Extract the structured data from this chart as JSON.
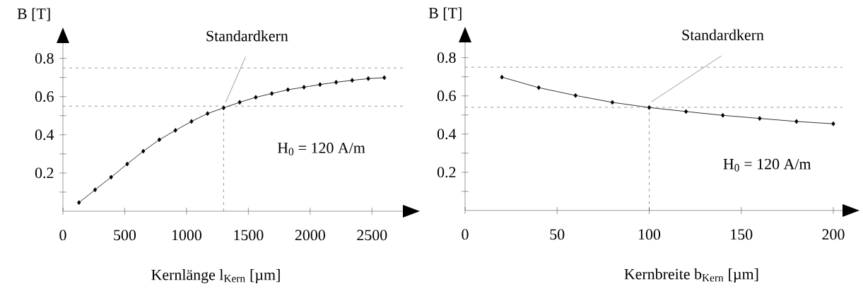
{
  "chart_data": [
    {
      "type": "line",
      "xlabel": "Kernlänge l$_{Kern}$ [µm]",
      "ylabel": "B [T]",
      "x": [
        130,
        260,
        390,
        520,
        650,
        780,
        910,
        1040,
        1170,
        1300,
        1430,
        1560,
        1690,
        1820,
        1950,
        2080,
        2210,
        2340,
        2470,
        2600
      ],
      "series": [
        {
          "color": "#000000",
          "values": [
            0.045,
            0.112,
            0.178,
            0.247,
            0.314,
            0.374,
            0.423,
            0.47,
            0.511,
            0.541,
            0.57,
            0.596,
            0.616,
            0.636,
            0.649,
            0.663,
            0.675,
            0.685,
            0.694,
            0.699
          ]
        }
      ],
      "xlim": [
        0,
        2750
      ],
      "ylim": [
        0,
        0.88
      ],
      "xticks": [
        0,
        500,
        1000,
        1500,
        2000,
        2500
      ],
      "yticks": [
        {
          "value": 0.1,
          "label": null
        },
        0.2,
        {
          "value": 0.3,
          "label": null
        },
        0.4,
        {
          "value": 0.5,
          "label": null
        },
        0.6,
        {
          "value": 0.7,
          "label": null
        },
        0.8
      ],
      "ref_lines": [
        {
          "axis": "y",
          "value": 0.55,
          "line_style": "dashed"
        },
        {
          "axis": "y",
          "value": 0.75,
          "line_style": "dashed"
        },
        {
          "axis": "x",
          "value": 1300,
          "line_style": "dashed"
        }
      ],
      "annotations": [
        {
          "text": "Standardkern",
          "x": 1300,
          "y": 0.541
        },
        "H$_{0}$ = 120 A/m"
      ],
      "marker": "diamond",
      "line_style": "solid",
      "grid": false
    },
    {
      "type": "line",
      "xlabel": "Kernbreite b$_{Kern}$ [µm]",
      "ylabel": "B [T]",
      "x": [
        20,
        40,
        60,
        80,
        100,
        120,
        140,
        160,
        180,
        200
      ],
      "series": [
        {
          "color": "#000000",
          "values": [
            0.698,
            0.643,
            0.602,
            0.566,
            0.539,
            0.518,
            0.498,
            0.482,
            0.466,
            0.454
          ]
        }
      ],
      "xlim": [
        0,
        205
      ],
      "ylim": [
        0,
        0.88
      ],
      "xticks": [
        0,
        50,
        100,
        150,
        200
      ],
      "yticks": [
        {
          "value": 0.1,
          "label": null
        },
        0.2,
        {
          "value": 0.3,
          "label": null
        },
        0.4,
        {
          "value": 0.5,
          "label": null
        },
        0.6,
        {
          "value": 0.7,
          "label": null
        },
        0.8
      ],
      "ref_lines": [
        {
          "axis": "y",
          "value": 0.54,
          "line_style": "dashed"
        },
        {
          "axis": "y",
          "value": 0.75,
          "line_style": "dashed"
        },
        {
          "axis": "x",
          "value": 100,
          "line_style": "dashed"
        }
      ],
      "annotations": [
        {
          "text": "Standardkern",
          "x": 100,
          "y": 0.539
        },
        "H$_{0}$ = 120 A/m"
      ],
      "marker": "diamond",
      "line_style": "solid",
      "grid": false
    }
  ]
}
